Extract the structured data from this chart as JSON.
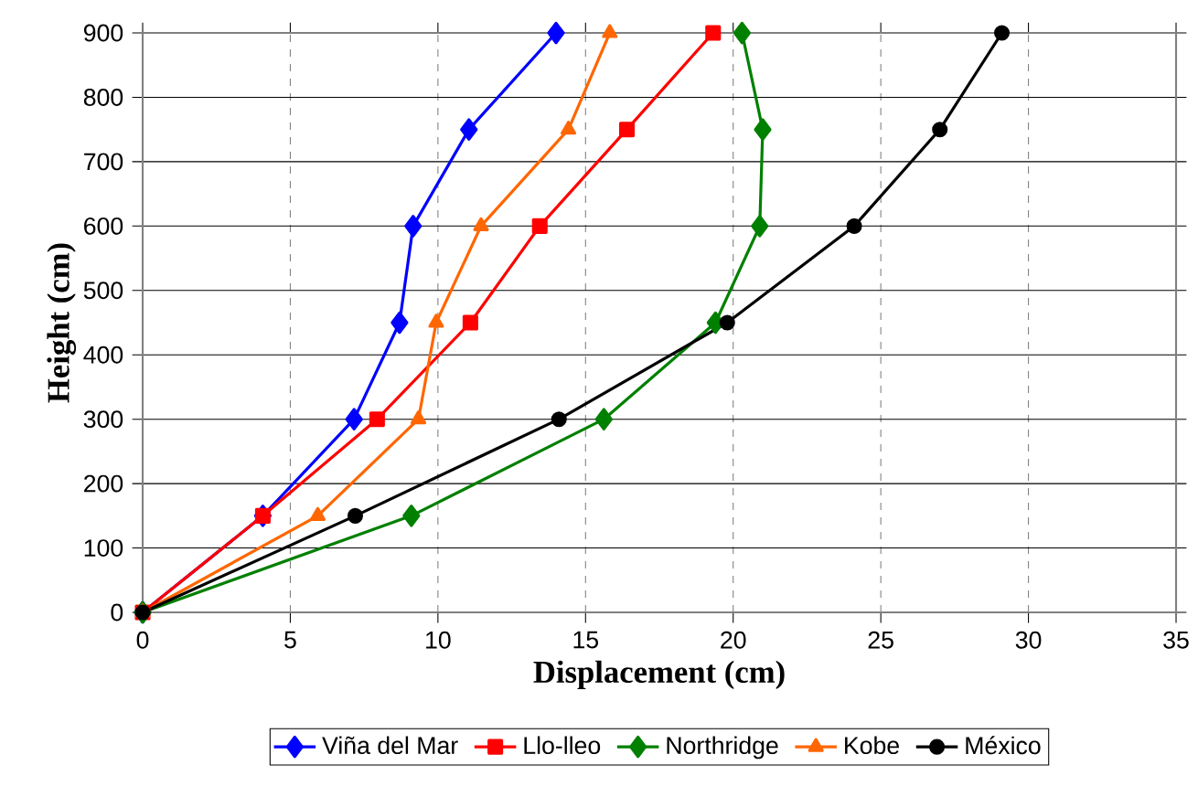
{
  "chart_data": {
    "type": "line",
    "xlabel": "Displacement (cm)",
    "ylabel": "Height (cm)",
    "xlim": [
      0,
      35
    ],
    "xticks": [
      0,
      5,
      10,
      15,
      20,
      25,
      30,
      35
    ],
    "ylim": [
      0,
      900
    ],
    "yticks": [
      0,
      100,
      200,
      300,
      400,
      500,
      600,
      700,
      800,
      900
    ],
    "grid": true,
    "legend": "bottom",
    "line_style": "solid",
    "series": [
      {
        "name": "Viña del Mar",
        "color": "#0000ff",
        "marker": "diamond",
        "x": [
          0,
          4.07,
          7.16,
          8.7,
          9.16,
          11.05,
          14.0
        ],
        "values": [
          0,
          150,
          300,
          450,
          600,
          750,
          900
        ]
      },
      {
        "name": "Llo-lleo",
        "color": "#ff0000",
        "marker": "square",
        "x": [
          0,
          4.07,
          7.94,
          11.1,
          13.45,
          16.4,
          19.32
        ],
        "values": [
          0,
          150,
          300,
          450,
          600,
          750,
          900
        ]
      },
      {
        "name": "Northridge",
        "color": "#008000",
        "marker": "diamond",
        "x": [
          0,
          9.1,
          15.62,
          19.4,
          20.9,
          21.0,
          20.3
        ],
        "values": [
          0,
          150,
          300,
          450,
          600,
          750,
          900
        ]
      },
      {
        "name": "Kobe",
        "color": "#ff6600",
        "marker": "triangle",
        "x": [
          0,
          5.93,
          9.34,
          9.94,
          11.46,
          14.42,
          15.82
        ],
        "values": [
          0,
          150,
          300,
          450,
          600,
          750,
          900
        ]
      },
      {
        "name": "México",
        "color": "#000000",
        "marker": "circle",
        "x": [
          0,
          7.2,
          14.1,
          19.8,
          24.1,
          27.0,
          29.1
        ],
        "values": [
          0,
          150,
          300,
          450,
          600,
          750,
          900
        ]
      }
    ]
  }
}
